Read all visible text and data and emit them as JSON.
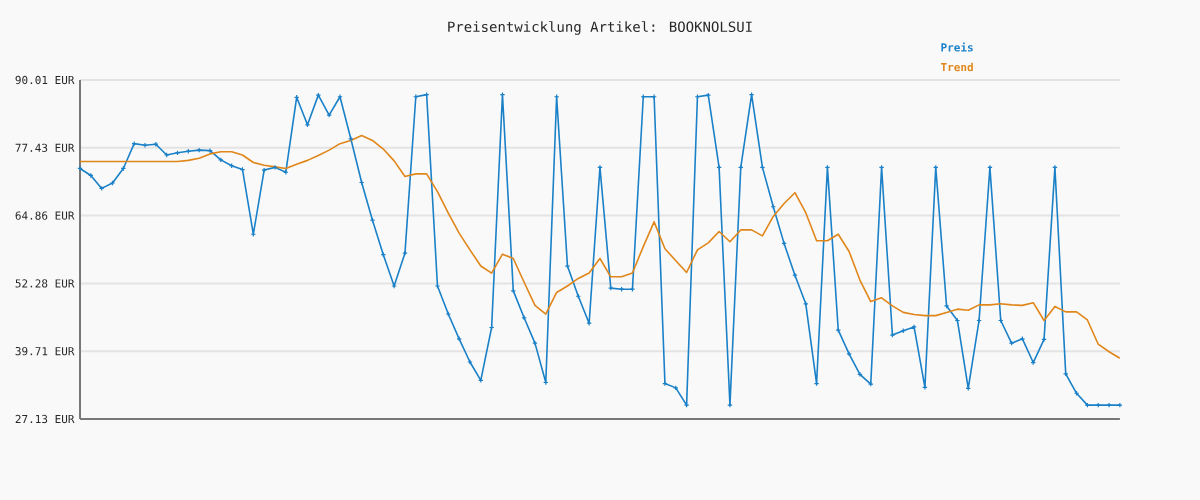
{
  "chart_data": {
    "type": "line",
    "title": "Preisentwicklung Artikel: BOOKNOLSUI",
    "categories": [
      null,
      null,
      null,
      null,
      null,
      null,
      null,
      null,
      null,
      null,
      null,
      null,
      null,
      null,
      null,
      null,
      null,
      null,
      null,
      null,
      null,
      null,
      null,
      null,
      null,
      null,
      null,
      null,
      null,
      null,
      null,
      null,
      null,
      null,
      null,
      null,
      null,
      null,
      null,
      null,
      null,
      null,
      null,
      null,
      null,
      null,
      null,
      null,
      null,
      null,
      null,
      null,
      null,
      null,
      null,
      null,
      null,
      null,
      null,
      null,
      null,
      null,
      null,
      null,
      null,
      null,
      null,
      null,
      null,
      null,
      null,
      null,
      null,
      null,
      null,
      null,
      null,
      null,
      null,
      null,
      null,
      null,
      null,
      null,
      null,
      null,
      null,
      null,
      null,
      null,
      null,
      null,
      null,
      null,
      null,
      null,
      null
    ],
    "series": [
      {
        "name": "Preis",
        "color": "#1a80c8",
        "marker": "cross",
        "values": [
          73.6,
          72.3,
          69.9,
          70.9,
          73.6,
          78.2,
          77.9,
          78.1,
          76.1,
          76.5,
          76.8,
          77.0,
          76.9,
          75.2,
          74.1,
          73.4,
          61.4,
          73.3,
          73.8,
          72.9,
          86.8,
          81.7,
          87.2,
          83.5,
          86.9,
          79.1,
          71.0,
          64.0,
          57.6,
          51.8,
          57.9,
          86.9,
          87.3,
          51.8,
          46.6,
          42.0,
          37.7,
          34.3,
          44.1,
          87.3,
          50.9,
          45.9,
          41.2,
          33.9,
          86.9,
          55.5,
          49.9,
          44.9,
          73.8,
          51.4,
          51.2,
          51.2,
          86.9,
          86.9,
          33.7,
          32.9,
          29.7,
          86.9,
          87.2,
          73.8,
          29.7,
          73.8,
          87.3,
          73.8,
          66.5,
          59.7,
          53.8,
          48.5,
          33.7,
          73.8,
          43.6,
          39.2,
          35.4,
          33.6,
          73.8,
          42.7,
          43.5,
          44.2,
          33.0,
          73.8,
          48.1,
          45.4,
          32.8,
          45.4,
          73.8,
          45.4,
          41.2,
          42.0,
          37.6,
          41.9,
          73.8,
          35.5,
          31.9,
          29.7,
          29.7,
          29.7,
          29.7
        ]
      },
      {
        "name": "Trend",
        "color": "#e0861a",
        "marker": "none",
        "values": [
          74.9,
          74.9,
          74.9,
          74.9,
          74.9,
          74.9,
          74.9,
          74.9,
          74.9,
          74.9,
          75.1,
          75.5,
          76.3,
          76.7,
          76.7,
          76.1,
          74.7,
          74.2,
          73.9,
          73.6,
          74.4,
          75.1,
          76.0,
          77.0,
          78.2,
          78.8,
          79.7,
          78.8,
          77.2,
          75.0,
          72.1,
          72.6,
          72.6,
          69.3,
          65.3,
          61.6,
          58.5,
          55.5,
          54.2,
          57.7,
          56.9,
          52.5,
          48.2,
          46.6,
          50.6,
          51.8,
          53.2,
          54.2,
          56.9,
          53.5,
          53.5,
          54.2,
          59.1,
          63.7,
          58.7,
          56.5,
          54.3,
          58.5,
          59.8,
          61.9,
          60.0,
          62.2,
          62.2,
          61.1,
          64.7,
          67.1,
          69.1,
          65.4,
          60.2,
          60.2,
          61.4,
          58.2,
          52.9,
          48.9,
          49.6,
          48.1,
          46.9,
          46.5,
          46.3,
          46.3,
          46.9,
          47.5,
          47.3,
          48.3,
          48.3,
          48.5,
          48.3,
          48.2,
          48.7,
          45.4,
          48.0,
          47.0,
          47.0,
          45.5,
          41.0,
          39.6,
          38.4
        ]
      }
    ],
    "ylim": [
      27.13,
      90.01
    ],
    "yticks": [
      {
        "value": 27.13,
        "label": "27.13 EUR"
      },
      {
        "value": 39.71,
        "label": "39.71 EUR"
      },
      {
        "value": 52.28,
        "label": "52.28 EUR"
      },
      {
        "value": 64.86,
        "label": "64.86 EUR"
      },
      {
        "value": 77.43,
        "label": "77.43 EUR"
      },
      {
        "value": 90.01,
        "label": "90.01 EUR"
      }
    ],
    "grid": "y",
    "legend": "top right",
    "line_style": "solid"
  }
}
